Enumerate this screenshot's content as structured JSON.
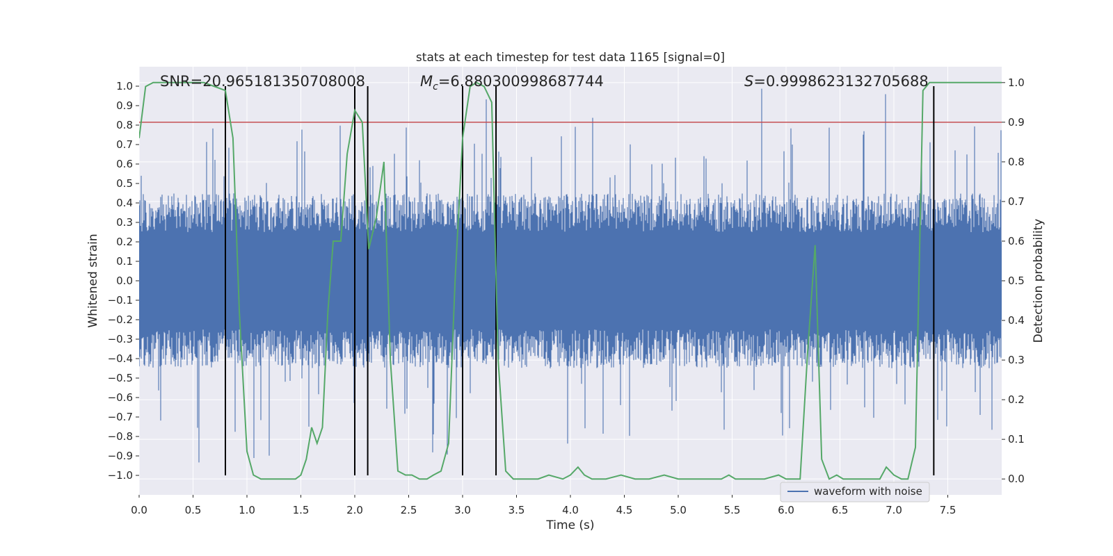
{
  "chart_data": {
    "type": "line",
    "title": "stats at each timestep for test data 1165 [signal=0]",
    "xlabel": "Time (s)",
    "ylabel": "Whitened strain",
    "ylabel_right": "Detection probability",
    "xlim": [
      0.0,
      8.0
    ],
    "ylim": [
      -1.1,
      1.1
    ],
    "ylim_right": [
      -0.04,
      1.04
    ],
    "x_ticks": [
      "0.0",
      "0.5",
      "1.0",
      "1.5",
      "2.0",
      "2.5",
      "3.0",
      "3.5",
      "4.0",
      "4.5",
      "5.0",
      "5.5",
      "6.0",
      "6.5",
      "7.0",
      "7.5"
    ],
    "y_ticks": [
      "1.0",
      "0.9",
      "0.8",
      "0.7",
      "0.6",
      "0.5",
      "0.4",
      "0.3",
      "0.2",
      "0.1",
      "0.0",
      "−0.1",
      "−0.2",
      "−0.3",
      "−0.4",
      "−0.5",
      "−0.6",
      "−0.7",
      "−0.8",
      "−0.9",
      "−1.0"
    ],
    "y_right_ticks": [
      "1.0",
      "0.9",
      "0.8",
      "0.7",
      "0.6",
      "0.5",
      "0.4",
      "0.3",
      "0.2",
      "0.1",
      "0.0"
    ],
    "annotations": {
      "snr": "SNR=20.965181350708008",
      "mc_symbol": "M",
      "mc_sub": "c",
      "mc_value": "=6.880300998687744",
      "s_symbol": "S",
      "s_value": "=0.9998623132705688"
    },
    "threshold": 0.9,
    "vertical_markers": [
      0.8,
      2.0,
      2.12,
      3.0,
      3.31,
      7.37
    ],
    "legend": {
      "entry": "waveform with noise",
      "position": "lower-right"
    },
    "waveform": {
      "name": "waveform with noise",
      "duration_s": 8.0,
      "core_band": 0.2,
      "typical_peak": 0.45,
      "max_peak": 1.0
    },
    "detection_probability": {
      "x": [
        0.0,
        0.06,
        0.13,
        0.2,
        0.3,
        0.4,
        0.5,
        0.6,
        0.7,
        0.8,
        0.87,
        0.93,
        1.0,
        1.06,
        1.13,
        1.2,
        1.3,
        1.4,
        1.45,
        1.5,
        1.55,
        1.6,
        1.65,
        1.7,
        1.75,
        1.8,
        1.87,
        1.93,
        2.0,
        2.07,
        2.13,
        2.2,
        2.27,
        2.33,
        2.4,
        2.47,
        2.53,
        2.6,
        2.67,
        2.73,
        2.8,
        2.87,
        2.93,
        3.0,
        3.07,
        3.13,
        3.2,
        3.27,
        3.33,
        3.4,
        3.47,
        3.53,
        3.6,
        3.7,
        3.8,
        3.93,
        4.0,
        4.07,
        4.13,
        4.2,
        4.27,
        4.33,
        4.47,
        4.6,
        4.73,
        4.87,
        5.0,
        5.13,
        5.27,
        5.4,
        5.47,
        5.53,
        5.67,
        5.8,
        5.93,
        6.0,
        6.07,
        6.13,
        6.2,
        6.27,
        6.33,
        6.4,
        6.47,
        6.53,
        6.6,
        6.67,
        6.73,
        6.8,
        6.87,
        6.93,
        7.0,
        7.07,
        7.13,
        7.2,
        7.27,
        7.33,
        7.4,
        7.47,
        7.53,
        7.6,
        8.0
      ],
      "y": [
        0.86,
        0.99,
        1.0,
        1.0,
        1.0,
        1.0,
        1.0,
        1.0,
        0.99,
        0.98,
        0.86,
        0.42,
        0.07,
        0.01,
        0.0,
        0.0,
        0.0,
        0.0,
        0.0,
        0.01,
        0.05,
        0.13,
        0.09,
        0.13,
        0.42,
        0.6,
        0.6,
        0.82,
        0.93,
        0.9,
        0.58,
        0.66,
        0.8,
        0.3,
        0.02,
        0.01,
        0.01,
        0.0,
        0.0,
        0.01,
        0.02,
        0.09,
        0.5,
        0.86,
        0.99,
        1.0,
        0.99,
        0.95,
        0.3,
        0.02,
        0.0,
        0.0,
        0.0,
        0.0,
        0.01,
        0.0,
        0.01,
        0.03,
        0.01,
        0.0,
        0.0,
        0.0,
        0.01,
        0.0,
        0.0,
        0.01,
        0.0,
        0.0,
        0.0,
        0.0,
        0.01,
        0.0,
        0.0,
        0.0,
        0.01,
        0.0,
        0.0,
        0.0,
        0.32,
        0.59,
        0.05,
        0.0,
        0.01,
        0.0,
        0.0,
        0.0,
        0.0,
        0.0,
        0.0,
        0.03,
        0.01,
        0.0,
        0.0,
        0.08,
        0.98,
        1.0,
        1.0,
        1.0,
        1.0,
        1.0,
        1.0
      ]
    },
    "colors": {
      "plot_bg": "#eaeaf2",
      "grid": "#ffffff",
      "waveform": "#4c72b0",
      "probability": "#55a868",
      "threshold": "#c44e52",
      "marker": "#000000"
    }
  }
}
